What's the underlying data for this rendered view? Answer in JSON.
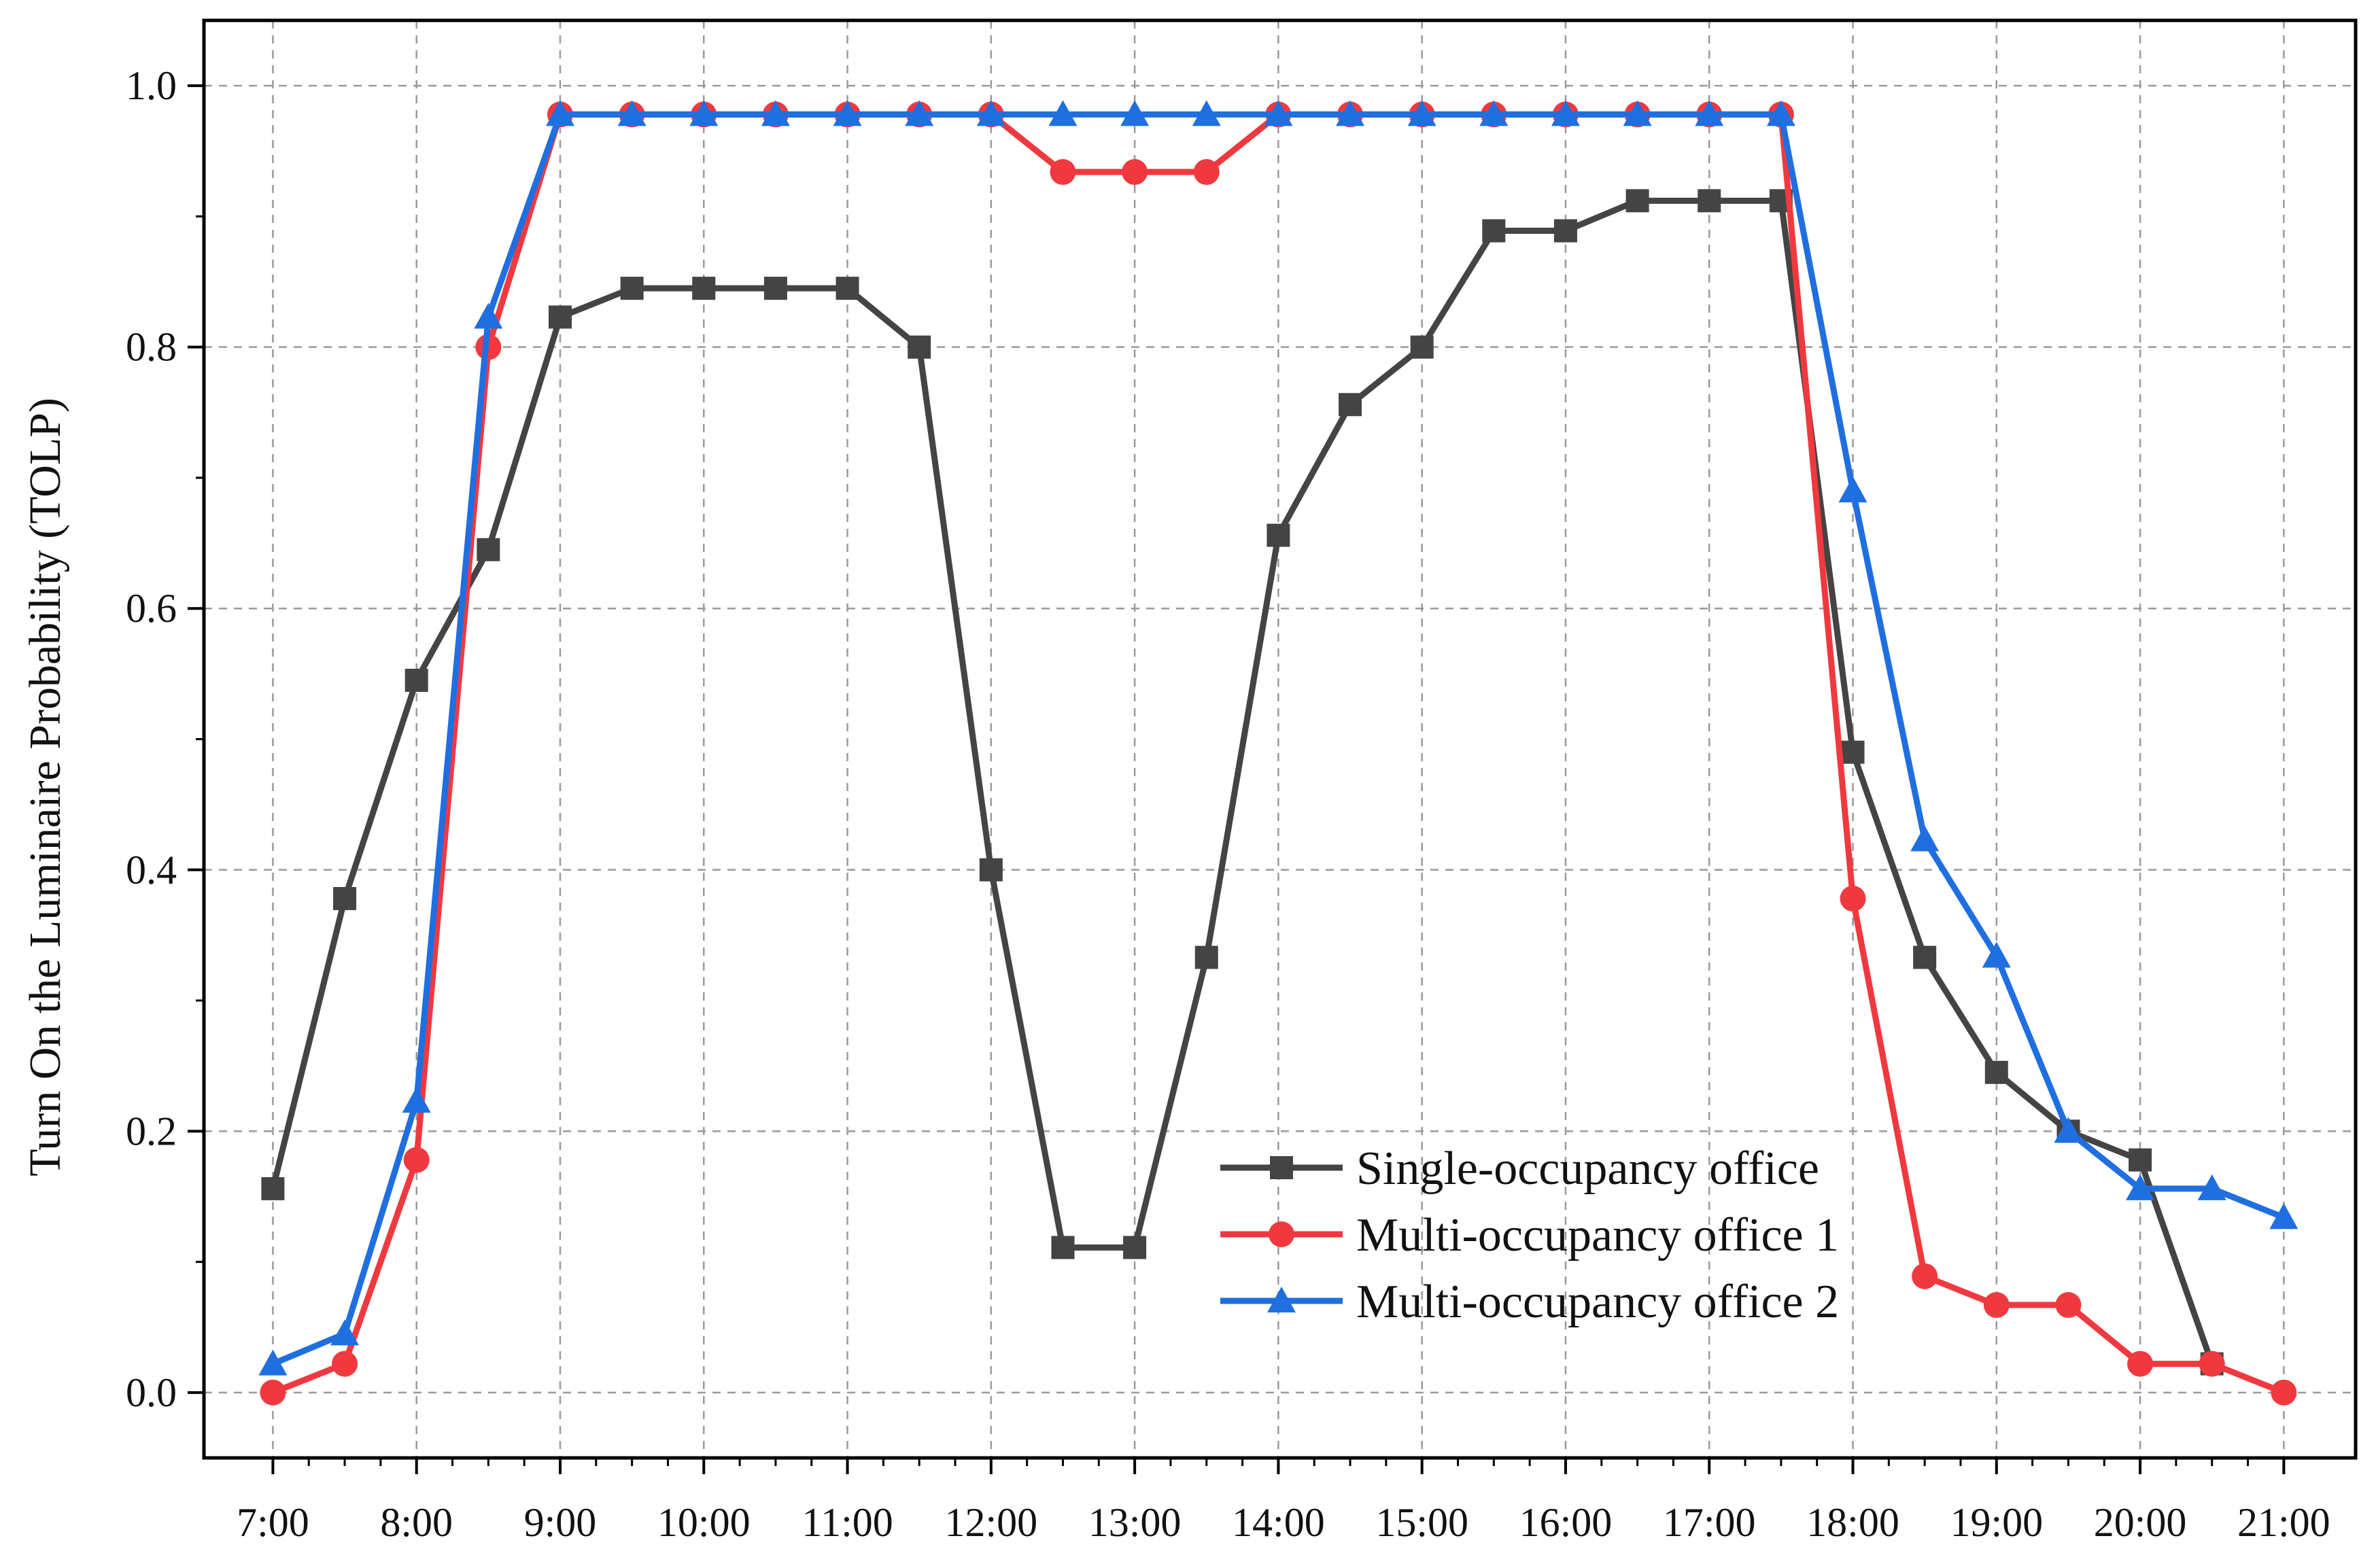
{
  "chart_data": {
    "type": "line",
    "title": "",
    "xlabel": "",
    "ylabel": "Turn On the Luminaire Probability (TOLP)",
    "x": [
      7.0,
      7.5,
      8.0,
      8.5,
      9.0,
      9.5,
      10.0,
      10.5,
      11.0,
      11.5,
      12.0,
      12.5,
      13.0,
      13.5,
      14.0,
      14.5,
      15.0,
      15.5,
      16.0,
      16.5,
      17.0,
      17.5,
      18.0,
      18.5,
      19.0,
      19.5,
      20.0,
      20.5,
      21.0
    ],
    "xlim": [
      6.52,
      21.5
    ],
    "ylim": [
      -0.05,
      1.05
    ],
    "xticks": [
      7,
      8,
      9,
      10,
      11,
      12,
      13,
      14,
      15,
      16,
      17,
      18,
      19,
      20,
      21
    ],
    "xtick_labels": [
      "7:00",
      "8:00",
      "9:00",
      "10:00",
      "11:00",
      "12:00",
      "13:00",
      "14:00",
      "15:00",
      "16:00",
      "17:00",
      "18:00",
      "19:00",
      "20:00",
      "21:00"
    ],
    "yticks": [
      0.0,
      0.2,
      0.4,
      0.6,
      0.8,
      1.0
    ],
    "ytick_labels": [
      "0.0",
      "0.2",
      "0.4",
      "0.6",
      "0.8",
      "1.0"
    ],
    "grid": true,
    "legend_position": "lower-center",
    "series": [
      {
        "name": "Single-occupancy office",
        "color": "#444444",
        "marker": "square",
        "values": [
          0.156,
          0.378,
          0.545,
          0.645,
          0.823,
          0.845,
          0.845,
          0.845,
          0.845,
          0.8,
          0.4,
          0.111,
          0.111,
          0.333,
          0.656,
          0.756,
          0.8,
          0.889,
          0.889,
          0.912,
          0.912,
          0.912,
          0.49,
          0.333,
          0.245,
          0.2,
          0.178,
          0.022,
          null
        ]
      },
      {
        "name": "Multi-occupancy office 1",
        "color": "#f0393f",
        "marker": "circle",
        "values": [
          0.0,
          0.022,
          0.178,
          0.8,
          0.978,
          0.978,
          0.978,
          0.978,
          0.978,
          0.978,
          0.978,
          0.934,
          0.934,
          0.934,
          0.978,
          0.978,
          0.978,
          0.978,
          0.978,
          0.978,
          0.978,
          0.978,
          0.378,
          0.089,
          0.067,
          0.067,
          0.022,
          0.022,
          0.0
        ]
      },
      {
        "name": "Multi-occupancy office 2",
        "color": "#1f6fe0",
        "marker": "triangle",
        "values": [
          0.022,
          0.045,
          0.223,
          0.823,
          0.978,
          0.978,
          0.978,
          0.978,
          0.978,
          0.978,
          0.978,
          0.978,
          0.978,
          0.978,
          0.978,
          0.978,
          0.978,
          0.978,
          0.978,
          0.978,
          0.978,
          0.978,
          0.69,
          0.423,
          0.334,
          0.2,
          0.156,
          0.156,
          0.134
        ]
      }
    ]
  }
}
